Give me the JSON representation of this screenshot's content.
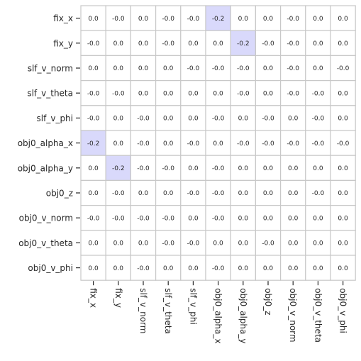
{
  "chart_data": {
    "type": "heatmap",
    "title": "",
    "xlabel": "",
    "ylabel": "",
    "rows": [
      "fix_x",
      "fix_y",
      "slf_v_norm",
      "slf_v_theta",
      "slf_v_phi",
      "obj0_alpha_x",
      "obj0_alpha_y",
      "obj0_z",
      "obj0_v_norm",
      "obj0_v_theta",
      "obj0_v_phi"
    ],
    "columns": [
      "fix_x",
      "fix_y",
      "slf_v_norm",
      "slf_v_theta",
      "slf_v_phi",
      "obj0_alpha_x",
      "obj0_alpha_y",
      "obj0_z",
      "obj0_v_norm",
      "obj0_v_theta",
      "obj0_v_phi"
    ],
    "labels": [
      [
        "0.0",
        "-0.0",
        "0.0",
        "-0.0",
        "-0.0",
        "-0.2",
        "0.0",
        "0.0",
        "-0.0",
        "0.0",
        "0.0"
      ],
      [
        "-0.0",
        "0.0",
        "0.0",
        "-0.0",
        "0.0",
        "0.0",
        "-0.2",
        "-0.0",
        "-0.0",
        "0.0",
        "0.0"
      ],
      [
        "0.0",
        "0.0",
        "0.0",
        "0.0",
        "-0.0",
        "-0.0",
        "-0.0",
        "0.0",
        "-0.0",
        "0.0",
        "-0.0"
      ],
      [
        "-0.0",
        "-0.0",
        "0.0",
        "0.0",
        "0.0",
        "0.0",
        "-0.0",
        "0.0",
        "-0.0",
        "-0.0",
        "0.0"
      ],
      [
        "-0.0",
        "0.0",
        "-0.0",
        "0.0",
        "0.0",
        "-0.0",
        "0.0",
        "-0.0",
        "0.0",
        "-0.0",
        "0.0"
      ],
      [
        "-0.2",
        "0.0",
        "-0.0",
        "0.0",
        "-0.0",
        "0.0",
        "-0.0",
        "-0.0",
        "-0.0",
        "-0.0",
        "-0.0"
      ],
      [
        "0.0",
        "-0.2",
        "-0.0",
        "-0.0",
        "0.0",
        "-0.0",
        "0.0",
        "0.0",
        "0.0",
        "0.0",
        "0.0"
      ],
      [
        "0.0",
        "-0.0",
        "0.0",
        "0.0",
        "-0.0",
        "-0.0",
        "0.0",
        "0.0",
        "0.0",
        "-0.0",
        "0.0"
      ],
      [
        "-0.0",
        "-0.0",
        "-0.0",
        "-0.0",
        "0.0",
        "-0.0",
        "0.0",
        "0.0",
        "0.0",
        "0.0",
        "0.0"
      ],
      [
        "0.0",
        "0.0",
        "0.0",
        "-0.0",
        "-0.0",
        "0.0",
        "0.0",
        "-0.0",
        "0.0",
        "0.0",
        "0.0"
      ],
      [
        "0.0",
        "0.0",
        "-0.0",
        "0.0",
        "0.0",
        "-0.0",
        "0.0",
        "0.0",
        "0.0",
        "0.0",
        "0.0"
      ]
    ],
    "values": [
      [
        0.0,
        -0.0,
        0.0,
        -0.0,
        -0.0,
        -0.2,
        0.0,
        0.0,
        -0.0,
        0.0,
        0.0
      ],
      [
        -0.0,
        0.0,
        0.0,
        -0.0,
        0.0,
        0.0,
        -0.2,
        -0.0,
        -0.0,
        0.0,
        0.0
      ],
      [
        0.0,
        0.0,
        0.0,
        0.0,
        -0.0,
        -0.0,
        -0.0,
        0.0,
        -0.0,
        0.0,
        -0.0
      ],
      [
        -0.0,
        -0.0,
        0.0,
        0.0,
        0.0,
        0.0,
        -0.0,
        0.0,
        -0.0,
        -0.0,
        0.0
      ],
      [
        -0.0,
        0.0,
        -0.0,
        0.0,
        0.0,
        -0.0,
        0.0,
        -0.0,
        0.0,
        -0.0,
        0.0
      ],
      [
        -0.2,
        0.0,
        -0.0,
        0.0,
        -0.0,
        0.0,
        -0.0,
        -0.0,
        -0.0,
        -0.0,
        -0.0
      ],
      [
        0.0,
        -0.2,
        -0.0,
        -0.0,
        0.0,
        -0.0,
        0.0,
        0.0,
        0.0,
        0.0,
        0.0
      ],
      [
        0.0,
        -0.0,
        0.0,
        0.0,
        -0.0,
        -0.0,
        0.0,
        0.0,
        0.0,
        -0.0,
        0.0
      ],
      [
        -0.0,
        -0.0,
        -0.0,
        -0.0,
        0.0,
        -0.0,
        0.0,
        0.0,
        0.0,
        0.0,
        0.0
      ],
      [
        0.0,
        0.0,
        0.0,
        -0.0,
        -0.0,
        0.0,
        0.0,
        -0.0,
        0.0,
        0.0,
        0.0
      ],
      [
        0.0,
        0.0,
        -0.0,
        0.0,
        0.0,
        -0.0,
        0.0,
        0.0,
        0.0,
        0.0,
        0.0
      ]
    ],
    "colors": {
      "neutral": "#ffffff",
      "highlight": "#d9d9fb",
      "grid": "#c8c8c8",
      "text": "#262626"
    },
    "grid": true,
    "legend": "none"
  }
}
